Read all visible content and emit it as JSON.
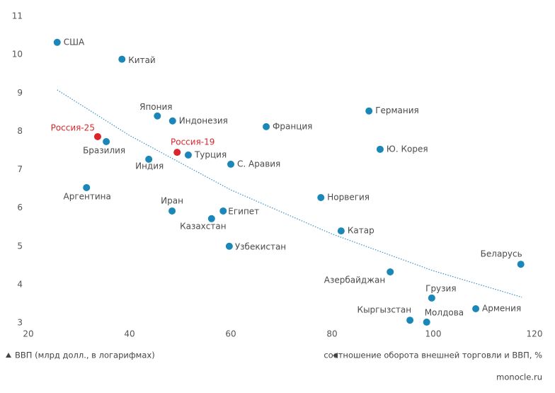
{
  "chart_data": {
    "type": "scatter",
    "xlabel": "соотношение оборота внешней торговли и ВВП, %",
    "ylabel": "ВВП (млрд долл., в логарифмах)",
    "source": "monocle.ru",
    "xlim": [
      20,
      120
    ],
    "xticks": [
      20,
      40,
      60,
      80,
      100,
      120
    ],
    "ylim": [
      3,
      11
    ],
    "yticks": [
      3,
      4,
      5,
      6,
      7,
      8,
      9,
      10,
      11
    ],
    "grid": false,
    "color": "#1b87b9",
    "highlight_color": "#d9262c",
    "trend_color": "#3a8fc8",
    "points": [
      {
        "label": "США",
        "x": 25.7,
        "y": 10.32
      },
      {
        "label": "Китай",
        "x": 38.5,
        "y": 9.88
      },
      {
        "label": "Япония",
        "x": 45.5,
        "y": 8.4
      },
      {
        "label": "Индонезия",
        "x": 48.5,
        "y": 8.27
      },
      {
        "label": "Германия",
        "x": 87.3,
        "y": 8.53
      },
      {
        "label": "Франция",
        "x": 67.0,
        "y": 8.12
      },
      {
        "label": "Россия-25",
        "x": 33.7,
        "y": 7.86,
        "highlight": true
      },
      {
        "label": "Бразилия",
        "x": 35.4,
        "y": 7.73
      },
      {
        "label": "Россия-19",
        "x": 49.4,
        "y": 7.45,
        "highlight": true
      },
      {
        "label": "Турция",
        "x": 51.6,
        "y": 7.38
      },
      {
        "label": "Индия",
        "x": 43.8,
        "y": 7.27
      },
      {
        "label": "С. Аравия",
        "x": 60.0,
        "y": 7.14
      },
      {
        "label": "Ю. Корея",
        "x": 89.5,
        "y": 7.53
      },
      {
        "label": "Аргентина",
        "x": 31.5,
        "y": 6.53
      },
      {
        "label": "Норвегия",
        "x": 77.8,
        "y": 6.27
      },
      {
        "label": "Иран",
        "x": 48.4,
        "y": 5.92
      },
      {
        "label": "Египет",
        "x": 58.5,
        "y": 5.92
      },
      {
        "label": "Казахстан",
        "x": 56.2,
        "y": 5.72
      },
      {
        "label": "Катар",
        "x": 81.8,
        "y": 5.4
      },
      {
        "label": "Узбекистан",
        "x": 59.7,
        "y": 5.0
      },
      {
        "label": "Азербайджан",
        "x": 91.5,
        "y": 4.33
      },
      {
        "label": "Беларусь",
        "x": 117.3,
        "y": 4.53
      },
      {
        "label": "Грузия",
        "x": 99.7,
        "y": 3.65
      },
      {
        "label": "Армения",
        "x": 108.4,
        "y": 3.37
      },
      {
        "label": "Кыргызстан",
        "x": 95.4,
        "y": 3.07
      },
      {
        "label": "Молдова",
        "x": 98.7,
        "y": 3.02
      }
    ],
    "trend": {
      "x": [
        25.7,
        40,
        60,
        80,
        100,
        117.5
      ],
      "y": [
        9.08,
        7.89,
        6.47,
        5.32,
        4.36,
        3.67
      ]
    }
  }
}
